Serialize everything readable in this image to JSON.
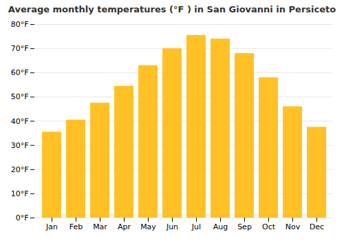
{
  "chart_data": {
    "type": "bar",
    "title": "Average monthly temperatures (°F ) in San Giovanni in Persiceto",
    "categories": [
      "Jan",
      "Feb",
      "Mar",
      "Apr",
      "May",
      "Jun",
      "Jul",
      "Aug",
      "Sep",
      "Oct",
      "Nov",
      "Dec"
    ],
    "values": [
      35.5,
      40.5,
      47.5,
      54.5,
      63.0,
      70.0,
      75.5,
      74.0,
      68.0,
      58.0,
      46.0,
      37.5
    ],
    "color": "#FFC125",
    "ylim": [
      0,
      80
    ],
    "yticks": [
      {
        "value": 0,
        "label": "0°F"
      },
      {
        "value": 10,
        "label": "10°F"
      },
      {
        "value": 20,
        "label": "20°F"
      },
      {
        "value": 30,
        "label": "30°F"
      },
      {
        "value": 40,
        "label": "40°F"
      },
      {
        "value": 50,
        "label": "50°F"
      },
      {
        "value": 60,
        "label": "60°F"
      },
      {
        "value": 70,
        "label": "70°F"
      },
      {
        "value": 80,
        "label": "80°F"
      }
    ],
    "grid": true
  }
}
